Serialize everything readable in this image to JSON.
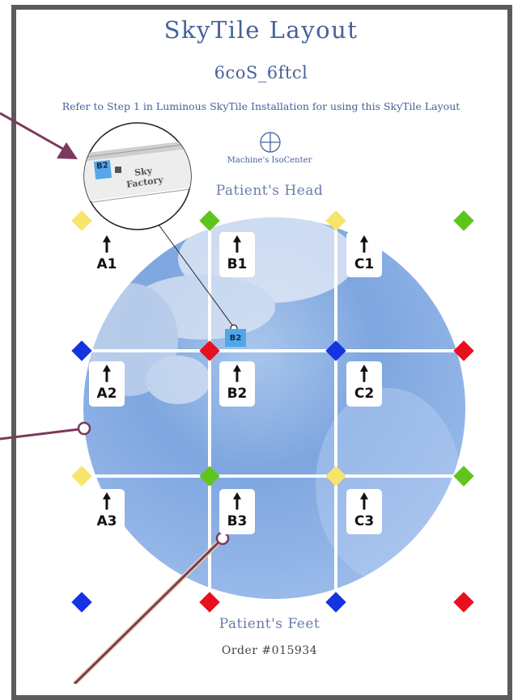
{
  "header": {
    "title": "SkyTile Layout",
    "subtitle": "6coS_6ftcl",
    "note": "Refer to Step 1 in Luminous SkyTile Installation for using this SkyTile Layout"
  },
  "isocenter": {
    "label": "Machine's IsoCenter",
    "icon": "crosshair-circle-icon"
  },
  "orientation": {
    "head": "Patient's Head",
    "feet": "Patient's Feet"
  },
  "order": {
    "label": "Order #015934"
  },
  "tiles": [
    {
      "code": "A1",
      "arrow": "🠕"
    },
    {
      "code": "B1",
      "arrow": "🠕"
    },
    {
      "code": "C1",
      "arrow": "🠕"
    },
    {
      "code": "A2",
      "arrow": "🠕"
    },
    {
      "code": "B2",
      "arrow": "🠕"
    },
    {
      "code": "C2",
      "arrow": "🠕"
    },
    {
      "code": "A3",
      "arrow": "🠕"
    },
    {
      "code": "B3",
      "arrow": "🠕"
    },
    {
      "code": "C3",
      "arrow": "🠕"
    }
  ],
  "zoom_callout": {
    "tile_tag": "B2",
    "brand": "Sky Factory"
  },
  "selected_marker": {
    "label": "B2"
  },
  "colors": {
    "frame": "#5b5b5b",
    "title": "#46629a",
    "leader_line": "#7b3a5c",
    "diamond_yellow": "#f7e56b",
    "diamond_green": "#5ec51d",
    "diamond_blue": "#1533e0",
    "diamond_red": "#e8101f",
    "tag_blue": "#4fa7ea"
  }
}
